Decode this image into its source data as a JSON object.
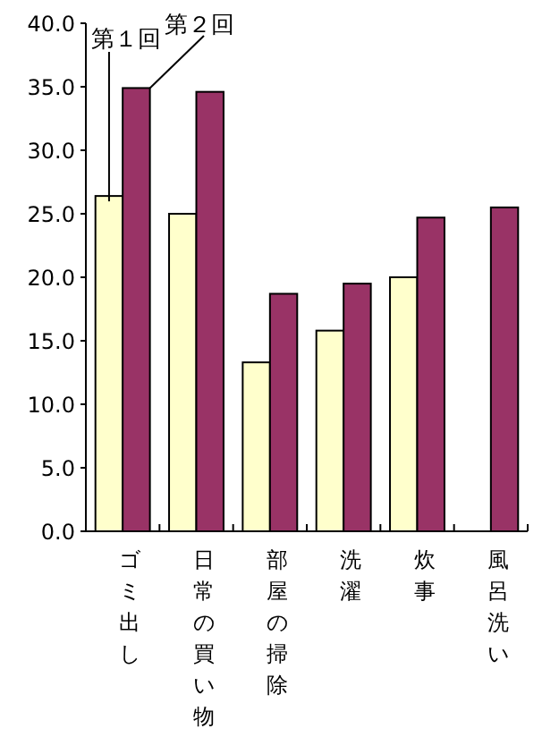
{
  "chart_data": {
    "type": "bar",
    "categories": [
      "ゴミ出し",
      "日常の買い物",
      "部屋の掃除",
      "洗濯",
      "炊事",
      "風呂洗い"
    ],
    "series": [
      {
        "name": "第１回",
        "color": "#ffffcc",
        "values": [
          26.4,
          25.0,
          13.3,
          15.8,
          20.0,
          null
        ]
      },
      {
        "name": "第２回",
        "color": "#993366",
        "values": [
          34.9,
          34.6,
          18.7,
          19.5,
          24.7,
          25.5
        ]
      }
    ],
    "ylim": [
      0,
      40
    ],
    "yticks": [
      {
        "value": 0,
        "label": "0.0"
      },
      {
        "value": 5,
        "label": "5.0"
      },
      {
        "value": 10,
        "label": "10.0"
      },
      {
        "value": 15,
        "label": "15.0"
      },
      {
        "value": 20,
        "label": "20.0"
      },
      {
        "value": 25,
        "label": "25.0"
      },
      {
        "value": 30,
        "label": "30.0"
      },
      {
        "value": 35,
        "label": "35.0"
      },
      {
        "value": 40,
        "label": "40.0"
      }
    ],
    "grid": false
  }
}
